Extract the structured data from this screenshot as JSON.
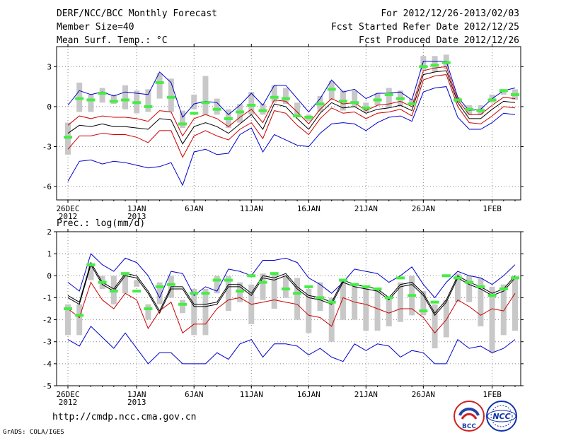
{
  "header": {
    "title": "DERF/NCC/BCC Monthly Forecast",
    "member": "Member Size=40",
    "variable": "Mean Surf. Temp.: °C",
    "period": "For 2012/12/26-2013/02/03",
    "started": "Fcst Started Refer Date 2012/12/25",
    "produced": "Fcst Produced Date 2012/12/26"
  },
  "footer": {
    "url": "http://cmdp.ncc.cma.gov.cn",
    "credit": "GrADS: COLA/IGES",
    "logo1": "BCC",
    "logo2": "NCC"
  },
  "colors": {
    "green": "#44ee44",
    "box": "#c8c8c8",
    "blue": "#0000cc",
    "red": "#cc0000",
    "black": "#000000",
    "grid": "#888888"
  },
  "chart_data": [
    {
      "type": "box-line",
      "title": "",
      "ylabel": "Mean Surf. Temp.: °C",
      "ylim": [
        -7,
        4.5
      ],
      "yticks": [
        3,
        0,
        -3,
        -6
      ],
      "x": [
        0,
        1,
        2,
        3,
        4,
        5,
        6,
        7,
        8,
        9,
        10,
        11,
        12,
        13,
        14,
        15,
        16,
        17,
        18,
        19,
        20,
        21,
        22,
        23,
        24,
        25,
        26,
        27,
        28,
        29,
        30,
        31,
        32,
        33,
        34,
        35,
        36,
        37,
        38,
        39
      ],
      "xticks": [
        {
          "x": 0,
          "label": "26DEC",
          "sub": "2012"
        },
        {
          "x": 6,
          "label": "1JAN",
          "sub": "2013"
        },
        {
          "x": 11,
          "label": "6JAN",
          "sub": ""
        },
        {
          "x": 16,
          "label": "11JAN",
          "sub": ""
        },
        {
          "x": 21,
          "label": "16JAN",
          "sub": ""
        },
        {
          "x": 26,
          "label": "21JAN",
          "sub": ""
        },
        {
          "x": 31,
          "label": "26JAN",
          "sub": ""
        },
        {
          "x": 37,
          "label": "1FEB",
          "sub": ""
        }
      ],
      "series": [
        {
          "name": "max",
          "color": "blue",
          "values": [
            0.1,
            1.2,
            0.9,
            1.1,
            0.8,
            1.1,
            1.0,
            0.9,
            2.6,
            1.8,
            -0.8,
            0.2,
            0.4,
            0.3,
            -0.6,
            0.1,
            1.0,
            0.1,
            1.6,
            1.6,
            0.6,
            -0.4,
            0.6,
            2.0,
            1.1,
            1.3,
            0.6,
            1.0,
            1.0,
            1.1,
            0.5,
            3.4,
            3.4,
            3.4,
            0.7,
            -0.3,
            -0.2,
            0.6,
            1.2,
            1.4
          ]
        },
        {
          "name": "upper",
          "color": "red",
          "values": [
            -1.4,
            -0.7,
            -0.9,
            -0.7,
            -0.8,
            -0.8,
            -0.9,
            -1.1,
            -0.3,
            -0.4,
            -2.2,
            -0.9,
            -0.6,
            -0.9,
            -1.5,
            -0.8,
            -0.2,
            -1.2,
            0.5,
            0.4,
            -0.4,
            -1.3,
            -0.2,
            0.6,
            0.2,
            0.3,
            -0.3,
            0.1,
            0.2,
            0.4,
            0.0,
            2.7,
            2.9,
            3.0,
            0.5,
            -0.6,
            -0.6,
            0.1,
            0.7,
            0.6
          ]
        },
        {
          "name": "median",
          "color": "black",
          "values": [
            -2.0,
            -1.4,
            -1.5,
            -1.3,
            -1.5,
            -1.5,
            -1.6,
            -1.7,
            -0.9,
            -1.0,
            -2.8,
            -1.5,
            -1.2,
            -1.5,
            -2.0,
            -1.3,
            -0.6,
            -1.7,
            0.2,
            0.0,
            -0.9,
            -1.7,
            -0.5,
            0.3,
            -0.1,
            0.0,
            -0.5,
            -0.2,
            -0.1,
            0.1,
            -0.3,
            2.4,
            2.6,
            2.7,
            0.3,
            -0.9,
            -0.9,
            -0.2,
            0.4,
            0.3
          ]
        },
        {
          "name": "lower",
          "color": "red",
          "values": [
            -3.2,
            -2.2,
            -2.2,
            -2.0,
            -2.1,
            -2.1,
            -2.3,
            -2.7,
            -1.8,
            -1.8,
            -3.8,
            -2.2,
            -1.8,
            -2.2,
            -2.5,
            -1.7,
            -1.2,
            -2.4,
            -0.3,
            -0.5,
            -1.4,
            -2.1,
            -0.9,
            -0.1,
            -0.5,
            -0.4,
            -0.9,
            -0.5,
            -0.4,
            -0.2,
            -0.7,
            2.0,
            2.3,
            2.4,
            0.0,
            -1.2,
            -1.3,
            -0.7,
            0.0,
            -0.1
          ]
        },
        {
          "name": "min",
          "color": "blue",
          "values": [
            -5.6,
            -4.1,
            -4.0,
            -4.3,
            -4.1,
            -4.2,
            -4.4,
            -4.6,
            -4.5,
            -4.2,
            -5.9,
            -3.4,
            -3.2,
            -3.6,
            -3.5,
            -2.1,
            -1.6,
            -3.4,
            -2.1,
            -2.5,
            -2.9,
            -3.0,
            -2.0,
            -1.3,
            -1.2,
            -1.3,
            -1.8,
            -1.2,
            -0.8,
            -0.7,
            -1.1,
            1.1,
            1.4,
            1.5,
            -0.8,
            -1.7,
            -1.7,
            -1.2,
            -0.5,
            -0.6
          ]
        },
        {
          "name": "box_low",
          "color": "box",
          "values": [
            -3.6,
            -0.4,
            -0.4,
            0.3,
            0.2,
            -0.2,
            -0.5,
            -0.4,
            0.6,
            -0.4,
            -1.6,
            -0.2,
            -0.6,
            -0.6,
            -1.6,
            -1.2,
            -0.6,
            -0.6,
            0.3,
            0.2,
            -0.6,
            -1.1,
            -0.4,
            0.5,
            -0.3,
            0.0,
            -0.4,
            0.1,
            -0.1,
            0.0,
            0.1,
            2.7,
            2.6,
            2.8,
            0.3,
            -0.6,
            -0.6,
            0.3,
            0.9,
            0.5
          ]
        },
        {
          "name": "box_high",
          "color": "box",
          "values": [
            -1.2,
            1.8,
            0.9,
            1.4,
            0.9,
            1.6,
            1.2,
            1.3,
            2.5,
            2.1,
            -0.3,
            0.9,
            2.3,
            0.6,
            -0.2,
            0.2,
            1.1,
            0.2,
            1.6,
            1.4,
            0.3,
            -0.6,
            0.8,
            1.9,
            1.2,
            1.2,
            0.3,
            1.0,
            1.4,
            1.2,
            0.6,
            3.8,
            3.8,
            3.9,
            0.7,
            0.1,
            0.1,
            0.9,
            1.3,
            1.3
          ]
        },
        {
          "name": "ensemble_mean",
          "color": "green",
          "values": [
            -2.3,
            0.6,
            0.5,
            1.0,
            0.4,
            0.5,
            0.3,
            0.0,
            1.8,
            0.7,
            -1.3,
            -0.5,
            0.3,
            -0.2,
            -0.9,
            -0.4,
            0.1,
            -0.3,
            0.7,
            0.6,
            -0.7,
            -0.8,
            0.2,
            1.3,
            0.4,
            0.3,
            -0.1,
            0.5,
            0.9,
            0.6,
            0.2,
            3.0,
            3.1,
            3.3,
            0.5,
            -0.2,
            -0.3,
            0.5,
            1.2,
            0.9
          ]
        }
      ]
    },
    {
      "type": "box-line",
      "title": "Prec.: log(mm/d)",
      "ylabel": "Prec.: log(mm/d)",
      "ylim": [
        -5,
        2
      ],
      "yticks": [
        2,
        1,
        0,
        -1,
        -2,
        -3,
        -4,
        -5
      ],
      "x": [
        0,
        1,
        2,
        3,
        4,
        5,
        6,
        7,
        8,
        9,
        10,
        11,
        12,
        13,
        14,
        15,
        16,
        17,
        18,
        19,
        20,
        21,
        22,
        23,
        24,
        25,
        26,
        27,
        28,
        29,
        30,
        31,
        32,
        33,
        34,
        35,
        36,
        37,
        38,
        39
      ],
      "xticks": [
        {
          "x": 0,
          "label": "26DEC",
          "sub": "2012"
        },
        {
          "x": 6,
          "label": "1JAN",
          "sub": "2013"
        },
        {
          "x": 11,
          "label": "6JAN",
          "sub": ""
        },
        {
          "x": 16,
          "label": "11JAN",
          "sub": ""
        },
        {
          "x": 21,
          "label": "16JAN",
          "sub": ""
        },
        {
          "x": 26,
          "label": "21JAN",
          "sub": ""
        },
        {
          "x": 31,
          "label": "26JAN",
          "sub": ""
        },
        {
          "x": 37,
          "label": "1FEB",
          "sub": ""
        }
      ],
      "series": [
        {
          "name": "max",
          "color": "blue",
          "values": [
            -0.3,
            -0.7,
            1.0,
            0.5,
            0.2,
            0.8,
            0.6,
            0.0,
            -1.0,
            0.2,
            0.1,
            -0.9,
            -0.5,
            -0.7,
            0.3,
            0.2,
            0.0,
            0.7,
            0.7,
            0.8,
            0.6,
            -0.1,
            -0.4,
            -0.8,
            -0.3,
            0.3,
            0.2,
            0.1,
            -0.3,
            0.0,
            0.4,
            -0.4,
            -1.0,
            -0.3,
            0.2,
            0.0,
            -0.1,
            -0.4,
            0.0,
            0.5
          ]
        },
        {
          "name": "upper",
          "color": "black",
          "values": [
            -0.9,
            -1.2,
            0.6,
            -0.3,
            -0.6,
            0.1,
            0.0,
            -0.7,
            -1.6,
            -0.5,
            -0.5,
            -1.3,
            -1.3,
            -1.2,
            -0.4,
            -0.4,
            -0.8,
            0.0,
            -0.1,
            0.1,
            -0.5,
            -0.9,
            -1.0,
            -1.2,
            -0.2,
            -0.4,
            -0.5,
            -0.6,
            -1.0,
            -0.4,
            -0.3,
            -0.8,
            -1.7,
            -1.1,
            0.0,
            -0.3,
            -0.5,
            -0.8,
            -0.6,
            0.0
          ]
        },
        {
          "name": "median",
          "color": "black",
          "values": [
            -1.0,
            -1.3,
            0.5,
            -0.4,
            -0.7,
            0.0,
            -0.1,
            -0.8,
            -1.7,
            -0.6,
            -0.6,
            -1.4,
            -1.4,
            -1.3,
            -0.5,
            -0.5,
            -0.9,
            -0.1,
            -0.2,
            0.0,
            -0.6,
            -1.0,
            -1.1,
            -1.3,
            -0.3,
            -0.5,
            -0.6,
            -0.7,
            -1.1,
            -0.5,
            -0.4,
            -0.9,
            -1.8,
            -1.2,
            -0.1,
            -0.4,
            -0.6,
            -0.9,
            -0.7,
            -0.1
          ]
        },
        {
          "name": "lower",
          "color": "red",
          "values": [
            -1.5,
            -1.9,
            -0.3,
            -1.1,
            -1.5,
            -0.8,
            -1.1,
            -2.4,
            -1.6,
            -1.2,
            -2.6,
            -2.2,
            -2.2,
            -1.5,
            -1.1,
            -1.0,
            -1.3,
            -1.2,
            -1.1,
            -1.2,
            -1.3,
            -1.8,
            -1.9,
            -2.3,
            -1.0,
            -1.2,
            -1.3,
            -1.5,
            -1.7,
            -1.5,
            -1.5,
            -1.9,
            -2.6,
            -2.0,
            -1.1,
            -1.4,
            -1.8,
            -1.5,
            -1.6,
            -0.8
          ]
        },
        {
          "name": "min",
          "color": "blue",
          "values": [
            -2.9,
            -3.2,
            -2.3,
            -2.8,
            -3.3,
            -2.6,
            -3.3,
            -4.0,
            -3.5,
            -3.5,
            -4.0,
            -4.0,
            -4.0,
            -3.5,
            -3.8,
            -3.1,
            -2.9,
            -3.7,
            -3.1,
            -3.1,
            -3.2,
            -3.6,
            -3.3,
            -3.7,
            -3.9,
            -3.1,
            -3.4,
            -3.1,
            -3.2,
            -3.7,
            -3.4,
            -3.5,
            -4.0,
            -4.0,
            -2.9,
            -3.3,
            -3.2,
            -3.5,
            -3.3,
            -2.9
          ]
        },
        {
          "name": "box_low",
          "color": "box",
          "values": [
            -2.7,
            -2.7,
            -0.2,
            -0.6,
            -1.3,
            -0.8,
            -0.5,
            -2.0,
            -1.3,
            -1.0,
            -1.7,
            -2.7,
            -2.7,
            -0.8,
            -1.6,
            -1.2,
            -2.2,
            -1.1,
            -1.5,
            -1.0,
            -2.0,
            -2.6,
            -1.6,
            -3.0,
            -2.0,
            -2.0,
            -2.5,
            -2.5,
            -2.3,
            -2.1,
            -1.8,
            -1.8,
            -3.3,
            -2.8,
            -1.2,
            -1.2,
            -2.3,
            -3.5,
            -2.7,
            -2.5
          ]
        },
        {
          "name": "box_high",
          "color": "box",
          "values": [
            -1.3,
            -1.3,
            0.5,
            0.0,
            0.0,
            0.1,
            -0.2,
            -1.3,
            -0.3,
            0.0,
            -1.1,
            -0.6,
            -0.6,
            0.0,
            0.0,
            -0.3,
            -0.4,
            0.1,
            0.1,
            0.0,
            -0.1,
            -0.6,
            -0.3,
            -1.0,
            -0.2,
            -0.4,
            -0.5,
            -0.6,
            -1.0,
            -0.3,
            0.0,
            -0.7,
            -1.3,
            -1.1,
            0.1,
            0.0,
            -0.1,
            -0.5,
            -0.4,
            0.0
          ]
        },
        {
          "name": "ensemble_mean",
          "color": "green",
          "values": [
            -1.5,
            -1.8,
            0.5,
            -0.3,
            -0.7,
            0.1,
            -0.7,
            -1.5,
            -0.5,
            -0.4,
            -1.3,
            -0.8,
            -0.8,
            -0.2,
            -0.2,
            -0.7,
            0.0,
            -0.3,
            0.1,
            -0.6,
            -0.8,
            -0.5,
            -1.0,
            -1.2,
            -0.2,
            -0.4,
            -0.5,
            -0.6,
            -1.0,
            -0.1,
            -0.9,
            -1.6,
            -1.2,
            0.0,
            -0.1,
            -0.3,
            -0.5,
            -0.9,
            -0.6,
            -0.1
          ]
        }
      ]
    }
  ]
}
